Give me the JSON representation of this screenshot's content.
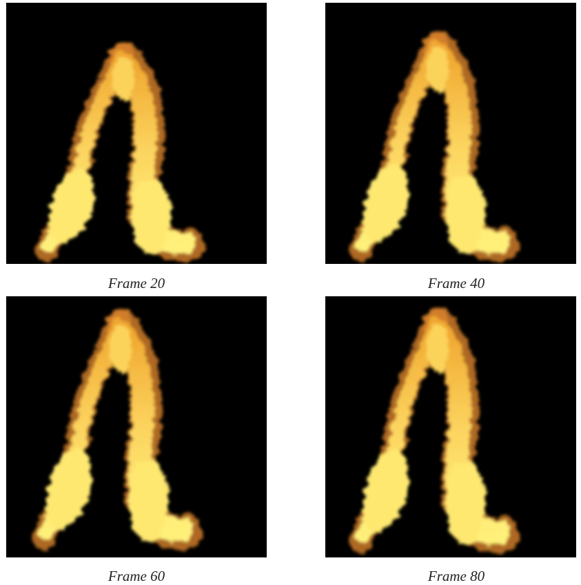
{
  "figure": {
    "panels": [
      {
        "caption": "Frame 20"
      },
      {
        "caption": "Frame 40"
      },
      {
        "caption": "Frame 60"
      },
      {
        "caption": "Frame 80"
      }
    ]
  }
}
